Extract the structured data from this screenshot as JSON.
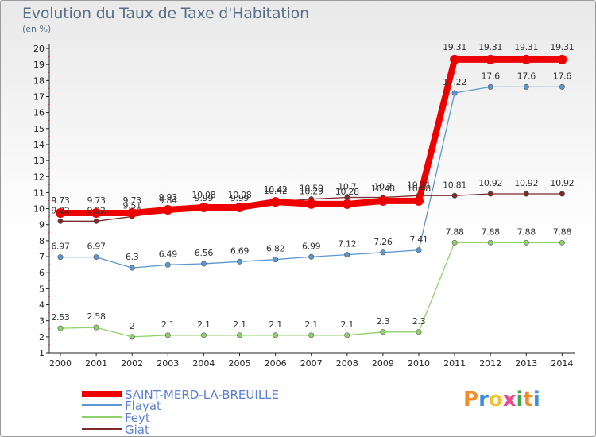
{
  "title": "Evolution du Taux de Taxe d'Habitation",
  "unit_label": "(en %)",
  "logo": {
    "text": "Proxiti",
    "colors": [
      "#f28c28",
      "#3f8fd8",
      "#f2c230",
      "#e84b8a",
      "#3fa84a",
      "#f28c28",
      "#3f8fd8"
    ]
  },
  "chart_data": {
    "type": "line",
    "title": "Evolution du Taux de Taxe d'Habitation",
    "ylabel": "(en %)",
    "xlabel": "",
    "ylim": [
      1,
      20
    ],
    "yticks": [
      1,
      2,
      3,
      4,
      5,
      6,
      7,
      8,
      9,
      10,
      11,
      12,
      13,
      14,
      15,
      16,
      17,
      18,
      19,
      20
    ],
    "categories": [
      "2000",
      "2001",
      "2002",
      "2003",
      "2004",
      "2005",
      "2006",
      "2007",
      "2008",
      "2009",
      "2010",
      "2011",
      "2012",
      "2013",
      "2014"
    ],
    "grid": false,
    "legend_position": "bottom-left",
    "series": [
      {
        "name": "SAINT-MERD-LA-BREUILLE",
        "color": "#ee0000",
        "emphasis": true,
        "values": [
          9.73,
          9.73,
          9.73,
          9.93,
          10.08,
          10.08,
          10.42,
          10.29,
          10.28,
          10.48,
          10.48,
          19.31,
          19.31,
          19.31,
          19.31
        ],
        "labels": [
          "9.73",
          "9.73",
          "9.73",
          "9.93",
          "10.08",
          "10.08",
          "10.42",
          "10.29",
          "10.28",
          "10.48",
          "10.48",
          "19.31",
          "19.31",
          "19.31",
          "19.31"
        ]
      },
      {
        "name": "Flayat",
        "color": "#5b97d1",
        "emphasis": false,
        "values": [
          6.97,
          6.97,
          6.3,
          6.49,
          6.56,
          6.69,
          6.82,
          6.99,
          7.12,
          7.26,
          7.41,
          17.22,
          17.6,
          17.6,
          17.6
        ],
        "labels": [
          "6.97",
          "6.97",
          "6.3",
          "6.49",
          "6.56",
          "6.69",
          "6.82",
          "6.99",
          "7.12",
          "7.26",
          "7.41",
          "17.22",
          "17.6",
          "17.6",
          "17.6"
        ]
      },
      {
        "name": "Feyt",
        "color": "#8fd16a",
        "emphasis": false,
        "values": [
          2.53,
          2.58,
          2.0,
          2.1,
          2.1,
          2.1,
          2.1,
          2.1,
          2.1,
          2.3,
          2.3,
          7.88,
          7.88,
          7.88,
          7.88
        ],
        "labels": [
          "2.53",
          "2.58",
          "2",
          "2.1",
          "2.1",
          "2.1",
          "2.1",
          "2.1",
          "2.1",
          "2.3",
          "2.3",
          "7.88",
          "7.88",
          "7.88",
          "7.88"
        ]
      },
      {
        "name": "Giat",
        "color": "#7a2a2a",
        "emphasis": false,
        "values": [
          9.22,
          9.22,
          9.51,
          9.84,
          9.99,
          9.99,
          10.42,
          10.59,
          10.7,
          10.7,
          10.81,
          10.81,
          10.92,
          10.92,
          10.92
        ],
        "labels": [
          "9.22",
          "9.22",
          "9.51",
          "9.84",
          "9.99",
          "9.99",
          "10.42",
          "10.59",
          "10.7",
          "10.7",
          "10.81",
          "10.81",
          "10.92",
          "10.92",
          "10.92"
        ]
      }
    ]
  }
}
